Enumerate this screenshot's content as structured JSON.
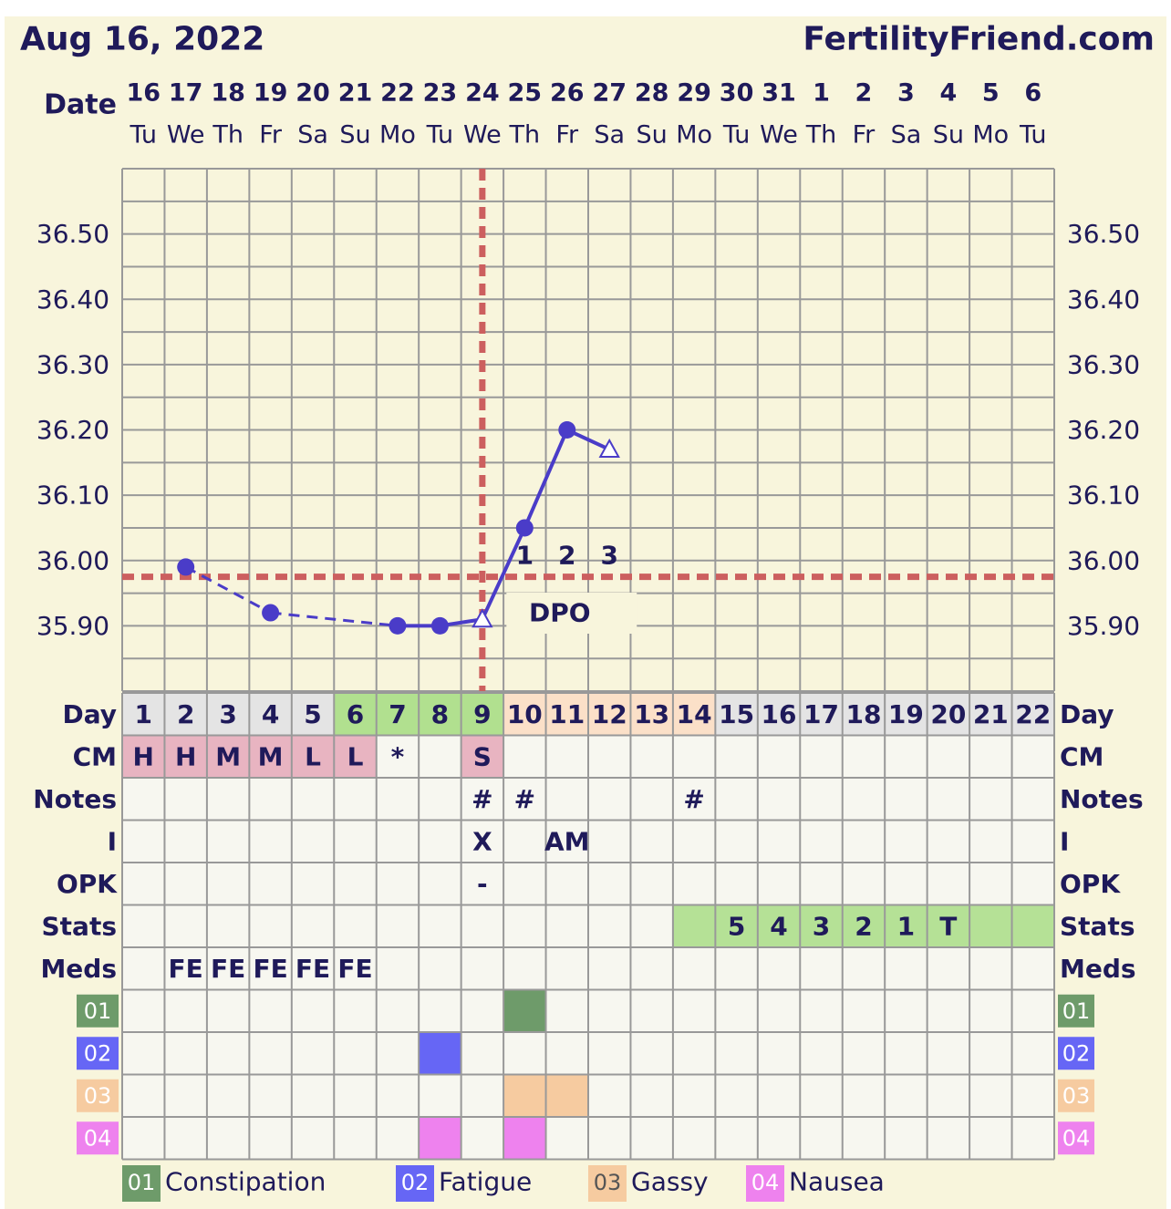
{
  "header": {
    "date": "Aug 16, 2022",
    "site": "FertilityFriend.com",
    "date_label": "Date"
  },
  "dates": [
    "16",
    "17",
    "18",
    "19",
    "20",
    "21",
    "22",
    "23",
    "24",
    "25",
    "26",
    "27",
    "28",
    "29",
    "30",
    "31",
    "1",
    "2",
    "3",
    "4",
    "5",
    "6"
  ],
  "weekdays": [
    "Tu",
    "We",
    "Th",
    "Fr",
    "Sa",
    "Su",
    "Mo",
    "Tu",
    "We",
    "Th",
    "Fr",
    "Sa",
    "Su",
    "Mo",
    "Tu",
    "We",
    "Th",
    "Fr",
    "Sa",
    "Su",
    "Mo",
    "Tu"
  ],
  "colors": {
    "background": "#f8f5dc",
    "line": "#4a3cc8",
    "coverline": "#cc5f5f",
    "text": "#1f1a5a",
    "grid": "#999999",
    "day_default": "#e4e4e4",
    "day_fertile": "#b1e08f",
    "day_luteal": "#fbe0c8",
    "cm": "#e8b4c1",
    "stats": "#b5e196"
  },
  "chart_data": {
    "type": "line",
    "ylim": [
      35.8,
      36.6
    ],
    "yticks": [
      "36.50",
      "36.40",
      "36.30",
      "36.20",
      "36.10",
      "36.00",
      "35.90"
    ],
    "grid": true,
    "x": [
      2,
      4,
      7,
      8,
      9,
      10,
      11,
      12
    ],
    "values": [
      35.99,
      35.92,
      35.9,
      35.9,
      35.91,
      36.05,
      36.2,
      36.17
    ],
    "markers": [
      "dot",
      "dot",
      "dot",
      "dot",
      "open-triangle",
      "dot",
      "dot",
      "open-triangle"
    ],
    "dashed_segments_before_day": [
      4,
      7
    ],
    "coverline": 35.975,
    "ovulation_day": 9,
    "dpo_labels": [
      {
        "day": 10,
        "label": "1"
      },
      {
        "day": 11,
        "label": "2"
      },
      {
        "day": 12,
        "label": "3"
      }
    ],
    "dpo_text": "DPO"
  },
  "rows": {
    "labels": {
      "day": "Day",
      "cm": "CM",
      "notes": "Notes",
      "i": "I",
      "opk": "OPK",
      "stats": "Stats",
      "meds": "Meds"
    },
    "days": [
      "1",
      "2",
      "3",
      "4",
      "5",
      "6",
      "7",
      "8",
      "9",
      "10",
      "11",
      "12",
      "13",
      "14",
      "15",
      "16",
      "17",
      "18",
      "19",
      "20",
      "21",
      "22"
    ],
    "day_phase": [
      "d",
      "d",
      "d",
      "d",
      "d",
      "f",
      "f",
      "f",
      "f",
      "l",
      "l",
      "l",
      "l",
      "l",
      "d",
      "d",
      "d",
      "d",
      "d",
      "d",
      "d",
      "d"
    ],
    "cm": [
      "H",
      "H",
      "M",
      "M",
      "L",
      "L",
      "*",
      "",
      "S",
      "",
      "",
      "",
      "",
      "",
      "",
      "",
      "",
      "",
      "",
      "",
      "",
      ""
    ],
    "notes": [
      "",
      "",
      "",
      "",
      "",
      "",
      "",
      "",
      "#",
      "#",
      "",
      "",
      "",
      "#",
      "",
      "",
      "",
      "",
      "",
      "",
      "",
      ""
    ],
    "i": [
      "",
      "",
      "",
      "",
      "",
      "",
      "",
      "",
      "X",
      "",
      "AM",
      "",
      "",
      "",
      "",
      "",
      "",
      "",
      "",
      "",
      "",
      ""
    ],
    "opk": [
      "",
      "",
      "",
      "",
      "",
      "",
      "",
      "",
      "-",
      "",
      "",
      "",
      "",
      "",
      "",
      "",
      "",
      "",
      "",
      "",
      "",
      ""
    ],
    "stats": [
      "",
      "",
      "",
      "",
      "",
      "",
      "",
      "",
      "",
      "",
      "",
      "",
      "",
      "",
      "5",
      "4",
      "3",
      "2",
      "1",
      "T",
      "",
      ""
    ],
    "stats_highlight_from_day": 14,
    "meds": [
      "",
      "FE",
      "FE",
      "FE",
      "FE",
      "FE",
      "",
      "",
      "",
      "",
      "",
      "",
      "",
      "",
      "",
      "",
      "",
      "",
      "",
      "",
      "",
      ""
    ]
  },
  "symptoms": [
    {
      "code": "01",
      "name": "Constipation",
      "color": "#6e9b6a",
      "days": [
        10
      ]
    },
    {
      "code": "02",
      "name": "Fatigue",
      "color": "#6666f5",
      "days": [
        8
      ]
    },
    {
      "code": "03",
      "name": "Gassy",
      "color": "#f6cba0",
      "days": [
        10,
        11
      ]
    },
    {
      "code": "04",
      "name": "Nausea",
      "color": "#ee82ee",
      "days": [
        8,
        10
      ]
    }
  ]
}
